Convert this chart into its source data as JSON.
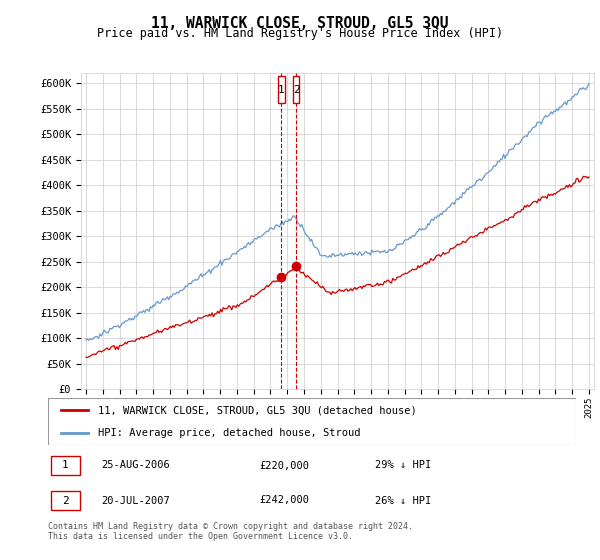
{
  "title": "11, WARWICK CLOSE, STROUD, GL5 3QU",
  "subtitle": "Price paid vs. HM Land Registry's House Price Index (HPI)",
  "ylim": [
    0,
    620000
  ],
  "yticks": [
    0,
    50000,
    100000,
    150000,
    200000,
    250000,
    300000,
    350000,
    400000,
    450000,
    500000,
    550000,
    600000
  ],
  "ytick_labels": [
    "£0",
    "£50K",
    "£100K",
    "£150K",
    "£200K",
    "£250K",
    "£300K",
    "£350K",
    "£400K",
    "£450K",
    "£500K",
    "£550K",
    "£600K"
  ],
  "xlim_start": 1994.7,
  "xlim_end": 2025.3,
  "red_line_label": "11, WARWICK CLOSE, STROUD, GL5 3QU (detached house)",
  "blue_line_label": "HPI: Average price, detached house, Stroud",
  "t1_year": 2006.65,
  "t2_year": 2007.54,
  "t1_price": 220000,
  "t2_price": 242000,
  "transaction1": {
    "label": "1",
    "date": "25-AUG-2006",
    "price": "£220,000",
    "hpi": "29% ↓ HPI"
  },
  "transaction2": {
    "label": "2",
    "date": "20-JUL-2007",
    "price": "£242,000",
    "hpi": "26% ↓ HPI"
  },
  "footnote": "Contains HM Land Registry data © Crown copyright and database right 2024.\nThis data is licensed under the Open Government Licence v3.0.",
  "red_color": "#cc0000",
  "blue_color": "#6699cc",
  "grid_color": "#cccccc",
  "bg_color": "#ffffff"
}
